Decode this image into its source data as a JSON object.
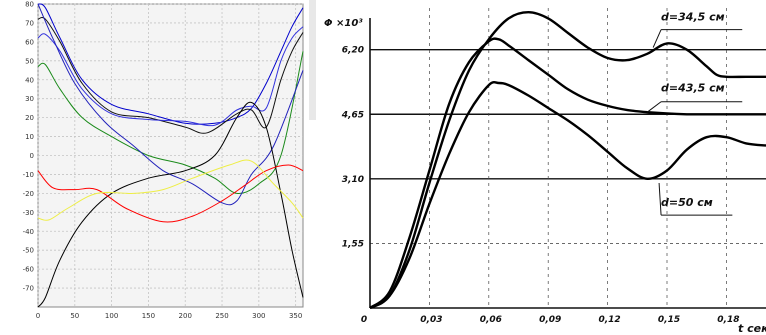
{
  "chart_data": [
    {
      "type": "line",
      "xlim": [
        0,
        360
      ],
      "ylim": [
        -80,
        80
      ],
      "x_ticks": [
        "0",
        "50",
        "100",
        "150",
        "200",
        "250",
        "300",
        "350"
      ],
      "y_ticks": [
        "80",
        "70",
        "60",
        "50",
        "40",
        "30",
        "20",
        "10",
        "0",
        "-10",
        "-20",
        "-30",
        "-40",
        "-50",
        "-60",
        "-70"
      ],
      "grid": true,
      "series": [
        {
          "color": "#0000cc",
          "x": [
            0,
            10,
            30,
            60,
            100,
            150,
            200,
            240,
            270,
            290,
            310,
            330,
            345,
            360
          ],
          "y": [
            80,
            78,
            62,
            40,
            27,
            22,
            17,
            17,
            20,
            25,
            38,
            55,
            68,
            78
          ]
        },
        {
          "color": "#111111",
          "x": [
            0,
            10,
            30,
            60,
            100,
            150,
            200,
            230,
            270,
            290,
            310,
            330,
            345,
            360
          ],
          "y": [
            72,
            72,
            60,
            38,
            23,
            20,
            15,
            12,
            22,
            24,
            15,
            40,
            55,
            65
          ]
        },
        {
          "color": "#3333dd",
          "x": [
            0,
            10,
            30,
            60,
            100,
            150,
            200,
            240,
            270,
            290,
            310,
            330,
            345,
            360
          ],
          "y": [
            62,
            64,
            55,
            35,
            22,
            19,
            18,
            16,
            24,
            26,
            25,
            50,
            62,
            68
          ]
        },
        {
          "color": "#1a8a1a",
          "x": [
            0,
            10,
            30,
            60,
            100,
            150,
            200,
            240,
            270,
            300,
            330,
            360
          ],
          "y": [
            47,
            48,
            35,
            20,
            10,
            0,
            -5,
            -12,
            -20,
            -15,
            0,
            55
          ]
        },
        {
          "color": "#2222bb",
          "x": [
            0,
            20,
            50,
            90,
            130,
            170,
            210,
            250,
            270,
            290,
            320,
            360
          ],
          "y": [
            80,
            62,
            38,
            18,
            5,
            -8,
            -15,
            -25,
            -24,
            -10,
            5,
            45
          ]
        },
        {
          "color": "#000000",
          "x": [
            0,
            10,
            30,
            60,
            100,
            150,
            200,
            240,
            270,
            290,
            310,
            330,
            345,
            360
          ],
          "y": [
            -80,
            -75,
            -55,
            -35,
            -20,
            -12,
            -8,
            0,
            20,
            28,
            15,
            -20,
            -50,
            -75
          ]
        },
        {
          "color": "#ff0000",
          "x": [
            0,
            20,
            50,
            80,
            120,
            170,
            210,
            250,
            280,
            310,
            340,
            360
          ],
          "y": [
            -8,
            -17,
            -18,
            -18,
            -28,
            -35,
            -32,
            -24,
            -16,
            -8,
            -5,
            -8
          ]
        },
        {
          "color": "#eeee44",
          "x": [
            0,
            15,
            40,
            80,
            130,
            170,
            210,
            260,
            290,
            320,
            345,
            360
          ],
          "y": [
            -33,
            -34,
            -28,
            -20,
            -20,
            -18,
            -12,
            -5,
            -3,
            -15,
            -25,
            -33
          ]
        }
      ]
    },
    {
      "type": "line",
      "y_axis_label": "Φ ×10³",
      "x_axis_label": "t сек",
      "x_tick_labels": [
        "0",
        "0,03",
        "0,06",
        "0,09",
        "0,12",
        "0,15",
        "0,18"
      ],
      "y_tick_labels": [
        "1,55",
        "3,10",
        "4,65",
        "6,20"
      ],
      "xlim": [
        0,
        0.2
      ],
      "ylim": [
        0,
        7.2
      ],
      "grid": true,
      "series": [
        {
          "name": "d=34,5 см",
          "x": [
            0,
            0.01,
            0.02,
            0.03,
            0.04,
            0.05,
            0.06,
            0.07,
            0.08,
            0.09,
            0.1,
            0.11,
            0.12,
            0.13,
            0.14,
            0.15,
            0.16,
            0.17,
            0.175,
            0.18,
            0.19,
            0.2
          ],
          "y": [
            0,
            0.3,
            1.4,
            3.0,
            4.5,
            5.7,
            6.45,
            6.95,
            7.1,
            6.95,
            6.6,
            6.25,
            6.0,
            5.95,
            6.1,
            6.35,
            6.2,
            5.8,
            5.6,
            5.55,
            5.55,
            5.55
          ]
        },
        {
          "name": "d=43,5 см",
          "x": [
            0,
            0.01,
            0.02,
            0.03,
            0.04,
            0.05,
            0.06,
            0.065,
            0.07,
            0.08,
            0.09,
            0.1,
            0.11,
            0.12,
            0.13,
            0.14,
            0.15,
            0.16,
            0.17,
            0.18,
            0.19,
            0.2
          ],
          "y": [
            0,
            0.4,
            1.7,
            3.3,
            4.9,
            5.9,
            6.4,
            6.45,
            6.3,
            5.95,
            5.6,
            5.25,
            5.0,
            4.85,
            4.75,
            4.7,
            4.67,
            4.65,
            4.65,
            4.65,
            4.65,
            4.65
          ]
        },
        {
          "name": "d=50 см",
          "x": [
            0,
            0.01,
            0.02,
            0.03,
            0.04,
            0.05,
            0.06,
            0.065,
            0.07,
            0.08,
            0.09,
            0.1,
            0.11,
            0.12,
            0.13,
            0.14,
            0.15,
            0.16,
            0.17,
            0.18,
            0.19,
            0.2
          ],
          "y": [
            0,
            0.3,
            1.2,
            2.5,
            3.7,
            4.7,
            5.35,
            5.4,
            5.35,
            5.1,
            4.8,
            4.5,
            4.15,
            3.75,
            3.35,
            3.1,
            3.3,
            3.8,
            4.1,
            4.1,
            3.95,
            3.9
          ]
        }
      ]
    }
  ]
}
